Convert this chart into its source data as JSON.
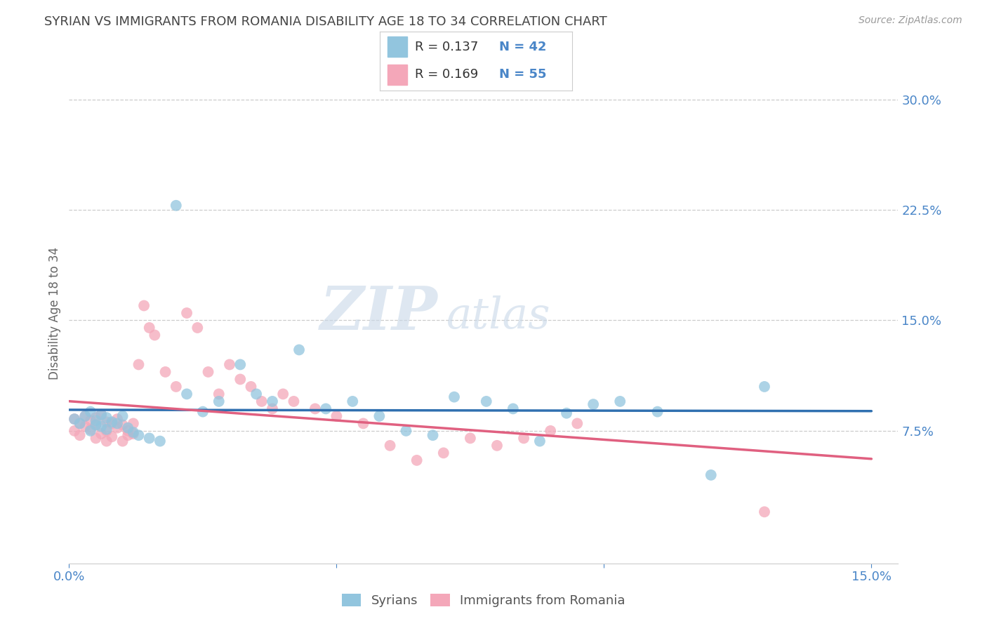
{
  "title": "SYRIAN VS IMMIGRANTS FROM ROMANIA DISABILITY AGE 18 TO 34 CORRELATION CHART",
  "source": "Source: ZipAtlas.com",
  "ylabel": "Disability Age 18 to 34",
  "xlim": [
    0.0,
    0.155
  ],
  "ylim": [
    -0.015,
    0.325
  ],
  "xticks": [
    0.0,
    0.05,
    0.1,
    0.15
  ],
  "xticklabels": [
    "0.0%",
    "",
    "",
    "15.0%"
  ],
  "yticks_right": [
    0.075,
    0.15,
    0.225,
    0.3
  ],
  "ytick_right_labels": [
    "7.5%",
    "15.0%",
    "22.5%",
    "30.0%"
  ],
  "r_syrians": 0.137,
  "n_syrians": 42,
  "r_romania": 0.169,
  "n_romania": 55,
  "legend_label1": "Syrians",
  "legend_label2": "Immigrants from Romania",
  "color_syrians": "#92c5de",
  "color_romania": "#f4a7b9",
  "trendline_color_syrians": "#3070b0",
  "trendline_color_romania": "#e06080",
  "watermark_zip": "ZIP",
  "watermark_atlas": "atlas",
  "background_color": "#ffffff",
  "grid_color": "#cccccc",
  "title_color": "#444444",
  "axis_label_color": "#4a86c8",
  "syrians_x": [
    0.001,
    0.002,
    0.003,
    0.004,
    0.004,
    0.005,
    0.005,
    0.006,
    0.006,
    0.007,
    0.007,
    0.008,
    0.009,
    0.01,
    0.011,
    0.012,
    0.013,
    0.015,
    0.017,
    0.02,
    0.022,
    0.025,
    0.028,
    0.032,
    0.035,
    0.038,
    0.043,
    0.048,
    0.053,
    0.058,
    0.063,
    0.068,
    0.072,
    0.078,
    0.083,
    0.088,
    0.093,
    0.098,
    0.103,
    0.11,
    0.12,
    0.13
  ],
  "syrians_y": [
    0.083,
    0.08,
    0.085,
    0.075,
    0.088,
    0.082,
    0.079,
    0.086,
    0.078,
    0.084,
    0.076,
    0.081,
    0.08,
    0.085,
    0.077,
    0.074,
    0.072,
    0.07,
    0.068,
    0.228,
    0.1,
    0.088,
    0.095,
    0.12,
    0.1,
    0.095,
    0.13,
    0.09,
    0.095,
    0.085,
    0.075,
    0.072,
    0.098,
    0.095,
    0.09,
    0.068,
    0.087,
    0.093,
    0.095,
    0.088,
    0.045,
    0.105
  ],
  "romania_x": [
    0.001,
    0.001,
    0.002,
    0.002,
    0.003,
    0.003,
    0.004,
    0.004,
    0.005,
    0.005,
    0.005,
    0.006,
    0.006,
    0.007,
    0.007,
    0.007,
    0.008,
    0.008,
    0.009,
    0.009,
    0.01,
    0.01,
    0.011,
    0.011,
    0.012,
    0.012,
    0.013,
    0.014,
    0.015,
    0.016,
    0.018,
    0.02,
    0.022,
    0.024,
    0.026,
    0.028,
    0.03,
    0.032,
    0.034,
    0.036,
    0.038,
    0.04,
    0.042,
    0.046,
    0.05,
    0.055,
    0.06,
    0.065,
    0.07,
    0.075,
    0.08,
    0.085,
    0.09,
    0.095,
    0.13
  ],
  "romania_y": [
    0.083,
    0.075,
    0.08,
    0.072,
    0.085,
    0.078,
    0.082,
    0.076,
    0.079,
    0.084,
    0.07,
    0.086,
    0.073,
    0.081,
    0.075,
    0.068,
    0.08,
    0.071,
    0.083,
    0.077,
    0.079,
    0.068,
    0.075,
    0.072,
    0.08,
    0.073,
    0.12,
    0.16,
    0.145,
    0.14,
    0.115,
    0.105,
    0.155,
    0.145,
    0.115,
    0.1,
    0.12,
    0.11,
    0.105,
    0.095,
    0.09,
    0.1,
    0.095,
    0.09,
    0.085,
    0.08,
    0.065,
    0.055,
    0.06,
    0.07,
    0.065,
    0.07,
    0.075,
    0.08,
    0.02
  ]
}
